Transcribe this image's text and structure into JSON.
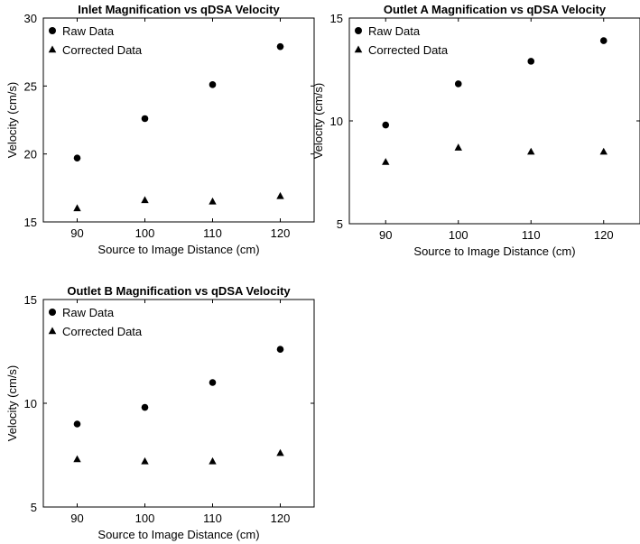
{
  "chart_data": [
    {
      "type": "scatter",
      "title": "Inlet Magnification vs qDSA Velocity",
      "xlabel": "Source to Image Distance (cm)",
      "ylabel": "Velocity (cm/s)",
      "xlim": [
        85,
        125
      ],
      "ylim": [
        15,
        30
      ],
      "xticks": [
        90,
        100,
        110,
        120
      ],
      "yticks": [
        15,
        20,
        25,
        30
      ],
      "grid": false,
      "legend": "top-left",
      "series": [
        {
          "name": "Raw Data",
          "marker": "circle",
          "x": [
            90,
            100,
            110,
            120
          ],
          "y": [
            19.7,
            22.6,
            25.1,
            27.9
          ]
        },
        {
          "name": "Corrected Data",
          "marker": "triangle",
          "x": [
            90,
            100,
            110,
            120
          ],
          "y": [
            16.0,
            16.6,
            16.5,
            16.9
          ]
        }
      ]
    },
    {
      "type": "scatter",
      "title": "Outlet A Magnification vs qDSA Velocity",
      "xlabel": "Source to Image Distance (cm)",
      "ylabel": "Velocity (cm/s)",
      "xlim": [
        85,
        125
      ],
      "ylim": [
        5,
        15
      ],
      "xticks": [
        90,
        100,
        110,
        120
      ],
      "yticks": [
        5,
        10,
        15
      ],
      "grid": false,
      "legend": "top-left",
      "series": [
        {
          "name": "Raw Data",
          "marker": "circle",
          "x": [
            90,
            100,
            110,
            120
          ],
          "y": [
            9.8,
            11.8,
            12.9,
            13.9
          ]
        },
        {
          "name": "Corrected Data",
          "marker": "triangle",
          "x": [
            90,
            100,
            110,
            120
          ],
          "y": [
            8.0,
            8.7,
            8.5,
            8.5
          ]
        }
      ]
    },
    {
      "type": "scatter",
      "title": "Outlet B Magnification vs qDSA Velocity",
      "xlabel": "Source to Image Distance (cm)",
      "ylabel": "Velocity (cm/s)",
      "xlim": [
        85,
        125
      ],
      "ylim": [
        5,
        15
      ],
      "xticks": [
        90,
        100,
        110,
        120
      ],
      "yticks": [
        5,
        10,
        15
      ],
      "grid": false,
      "legend": "top-left",
      "series": [
        {
          "name": "Raw Data",
          "marker": "circle",
          "x": [
            90,
            100,
            110,
            120
          ],
          "y": [
            9.0,
            9.8,
            11.0,
            12.6
          ]
        },
        {
          "name": "Corrected Data",
          "marker": "triangle",
          "x": [
            90,
            100,
            110,
            120
          ],
          "y": [
            7.3,
            7.2,
            7.2,
            7.6
          ]
        }
      ]
    }
  ]
}
